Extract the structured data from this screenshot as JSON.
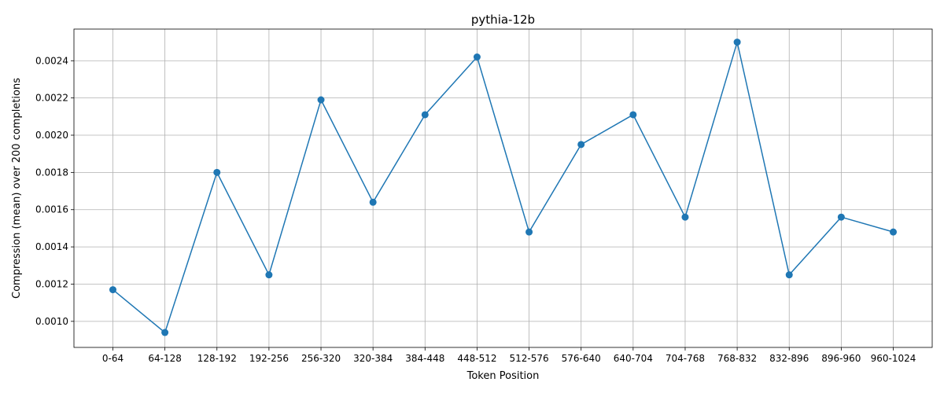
{
  "chart_data": {
    "type": "line",
    "title": "pythia-12b",
    "xlabel": "Token Position",
    "ylabel": "Compression (mean) over 200 completions",
    "categories": [
      "0-64",
      "64-128",
      "128-192",
      "192-256",
      "256-320",
      "320-384",
      "384-448",
      "448-512",
      "512-576",
      "576-640",
      "640-704",
      "704-768",
      "768-832",
      "832-896",
      "896-960",
      "960-1024"
    ],
    "series": [
      {
        "values": [
          0.00117,
          0.00094,
          0.0018,
          0.00125,
          0.00219,
          0.00164,
          0.00211,
          0.00242,
          0.00148,
          0.00195,
          0.00211,
          0.00156,
          0.0025,
          0.00125,
          0.00156,
          0.00148
        ],
        "color": "#1f77b4",
        "marker": "circle"
      }
    ],
    "yticks": [
      "0.0010",
      "0.0012",
      "0.0014",
      "0.0016",
      "0.0018",
      "0.0020",
      "0.0022",
      "0.0024"
    ],
    "ylim": [
      0.00086,
      0.00257
    ],
    "grid": true,
    "legend": "none"
  }
}
